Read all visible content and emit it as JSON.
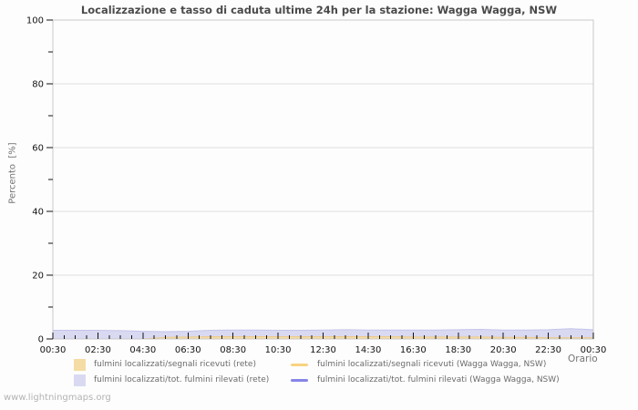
{
  "footer": {
    "watermark": "www.lightningmaps.org"
  },
  "colors": {
    "plot_border": "#c9c9c9",
    "gridline": "#dedede",
    "tick": "#141414",
    "title_text": "#4a4a4a",
    "axis_title_text": "#757575",
    "legend_text": "#6b6b6b",
    "watermark_text": "#b3b3b3"
  },
  "chart_data": {
    "type": "area",
    "title": "Localizzazione e tasso di caduta ultime 24h per la stazione: Wagga Wagga, NSW",
    "xlabel": "Orario",
    "ylabel": "Percento  [%]",
    "xlim_hours": [
      0,
      24
    ],
    "ylim": [
      0,
      100
    ],
    "grid": "horizontal-major",
    "legend_position": "bottom",
    "x_major_tick_labels": [
      "00:30",
      "02:30",
      "04:30",
      "06:30",
      "08:30",
      "10:30",
      "12:30",
      "14:30",
      "16:30",
      "18:30",
      "20:30",
      "22:30",
      "00:30"
    ],
    "x_major_step_hours": 2,
    "x_minor_step_hours": 0.5,
    "y_major_ticks": [
      0,
      20,
      40,
      60,
      80,
      100
    ],
    "y_minor_step": 10,
    "x_hours": [
      0,
      1,
      2,
      3,
      4,
      5,
      6,
      7,
      8,
      9,
      10,
      11,
      12,
      13,
      14,
      15,
      16,
      17,
      18,
      19,
      20,
      21,
      22,
      23,
      24
    ],
    "series": [
      {
        "name": "fulmini localizzati/tot. fulmini rilevati (rete)",
        "type": "area",
        "color": "#d9d9f2",
        "edge": "#c4c4ea",
        "values": [
          2.7,
          2.7,
          2.7,
          2.6,
          2.4,
          2.3,
          2.4,
          2.7,
          2.8,
          2.8,
          2.7,
          2.7,
          2.8,
          2.9,
          2.8,
          2.8,
          2.8,
          2.8,
          2.9,
          3.0,
          2.8,
          2.8,
          2.9,
          3.2,
          2.9
        ]
      },
      {
        "name": "fulmini localizzati/segnali ricevuti (rete)",
        "type": "area",
        "color": "#f5dca4",
        "edge": "#ecca8d",
        "values": [
          0,
          0,
          0,
          0,
          0,
          0.5,
          0.6,
          0.7,
          0.7,
          0.7,
          0.7,
          0.7,
          0.7,
          0.7,
          0.7,
          0.7,
          0.6,
          0.6,
          0.6,
          0.6,
          0.5,
          0.5,
          0.4,
          0.4,
          0.4
        ]
      },
      {
        "name": "fulmini localizzati/segnali ricevuti (Wagga Wagga, NSW)",
        "type": "line",
        "color": "#f9d382",
        "values": []
      },
      {
        "name": "fulmini localizzati/tot. fulmini rilevati (Wagga Wagga, NSW)",
        "type": "line",
        "color": "#8585e8",
        "values": []
      }
    ]
  }
}
